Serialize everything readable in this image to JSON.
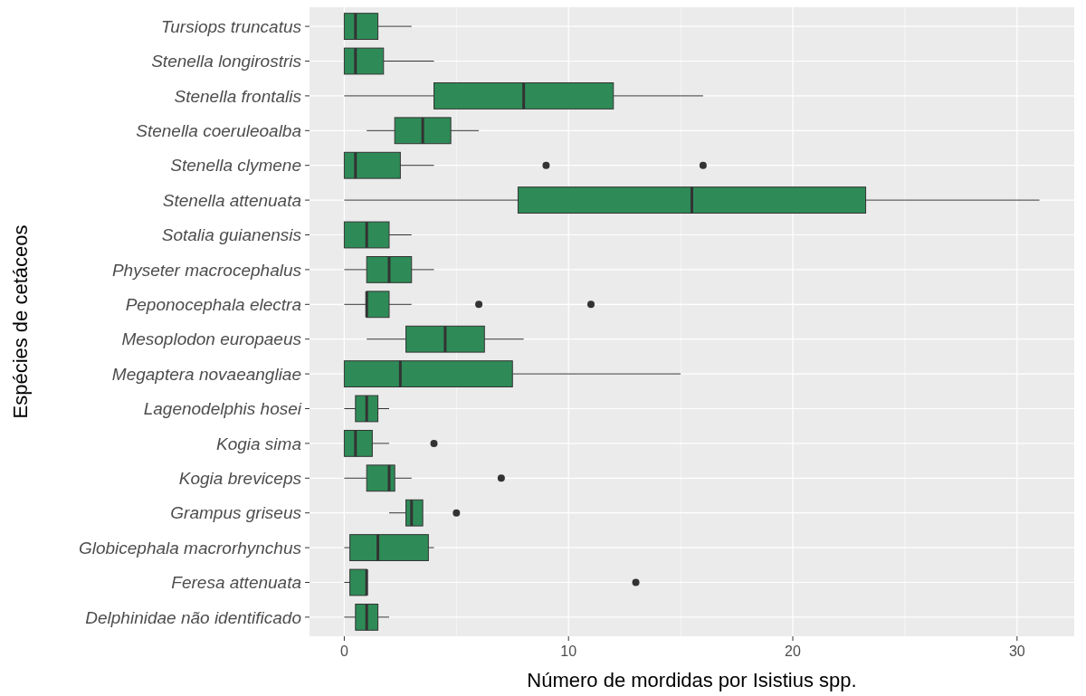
{
  "chart_data": {
    "type": "box",
    "orientation": "horizontal",
    "xlabel": "Número de mordidas por Isistius spp.",
    "ylabel": "Espécies de cetáceos",
    "xlim": [
      -1.55,
      32.55
    ],
    "xticks": [
      0,
      10,
      20,
      30
    ],
    "grid": true,
    "color": "#2e8b57",
    "categories": [
      "Tursiops truncatus",
      "Stenella longirostris",
      "Stenella frontalis",
      "Stenella coeruleoalba",
      "Stenella clymene",
      "Stenella attenuata",
      "Sotalia guianensis",
      "Physeter macrocephalus",
      "Peponocephala electra",
      "Mesoplodon europaeus",
      "Megaptera novaeangliae",
      "Lagenodelphis hosei",
      "Kogia sima",
      "Kogia breviceps",
      "Grampus griseus",
      "Globicephala macrorhynchus",
      "Feresa attenuata",
      "Delphinidae não identificado"
    ],
    "boxes": [
      {
        "low": 0,
        "q1": 0,
        "median": 0.5,
        "q3": 1.5,
        "high": 3
      },
      {
        "low": 0,
        "q1": 0,
        "median": 0.5,
        "q3": 1.75,
        "high": 4
      },
      {
        "low": 0,
        "q1": 4,
        "median": 8,
        "q3": 12,
        "high": 16
      },
      {
        "low": 1,
        "q1": 2.25,
        "median": 3.5,
        "q3": 4.75,
        "high": 6
      },
      {
        "low": 0,
        "q1": 0,
        "median": 0.5,
        "q3": 2.5,
        "high": 4,
        "outliers": [
          9,
          16
        ]
      },
      {
        "low": 0,
        "q1": 7.75,
        "median": 15.5,
        "q3": 23.25,
        "high": 31
      },
      {
        "low": 0,
        "q1": 0,
        "median": 1,
        "q3": 2,
        "high": 3
      },
      {
        "low": 0,
        "q1": 1,
        "median": 2,
        "q3": 3,
        "high": 4
      },
      {
        "low": 0,
        "q1": 1,
        "median": 1,
        "q3": 2,
        "high": 3,
        "outliers": [
          6,
          11
        ]
      },
      {
        "low": 1,
        "q1": 2.75,
        "median": 4.5,
        "q3": 6.25,
        "high": 8
      },
      {
        "low": 0,
        "q1": 0,
        "median": 2.5,
        "q3": 7.5,
        "high": 15
      },
      {
        "low": 0,
        "q1": 0.5,
        "median": 1,
        "q3": 1.5,
        "high": 2
      },
      {
        "low": 0,
        "q1": 0,
        "median": 0.5,
        "q3": 1.25,
        "high": 2,
        "outliers": [
          4
        ]
      },
      {
        "low": 0,
        "q1": 1,
        "median": 2,
        "q3": 2.25,
        "high": 3,
        "outliers": [
          7
        ]
      },
      {
        "low": 2,
        "q1": 2.75,
        "median": 3,
        "q3": 3.5,
        "high": 3.5,
        "outliers": [
          5
        ]
      },
      {
        "low": 0,
        "q1": 0.25,
        "median": 1.5,
        "q3": 3.75,
        "high": 4
      },
      {
        "low": 0,
        "q1": 0.25,
        "median": 1,
        "q3": 1,
        "high": 1,
        "outliers": [
          13
        ]
      },
      {
        "low": 0,
        "q1": 0.5,
        "median": 1,
        "q3": 1.5,
        "high": 2
      }
    ]
  }
}
